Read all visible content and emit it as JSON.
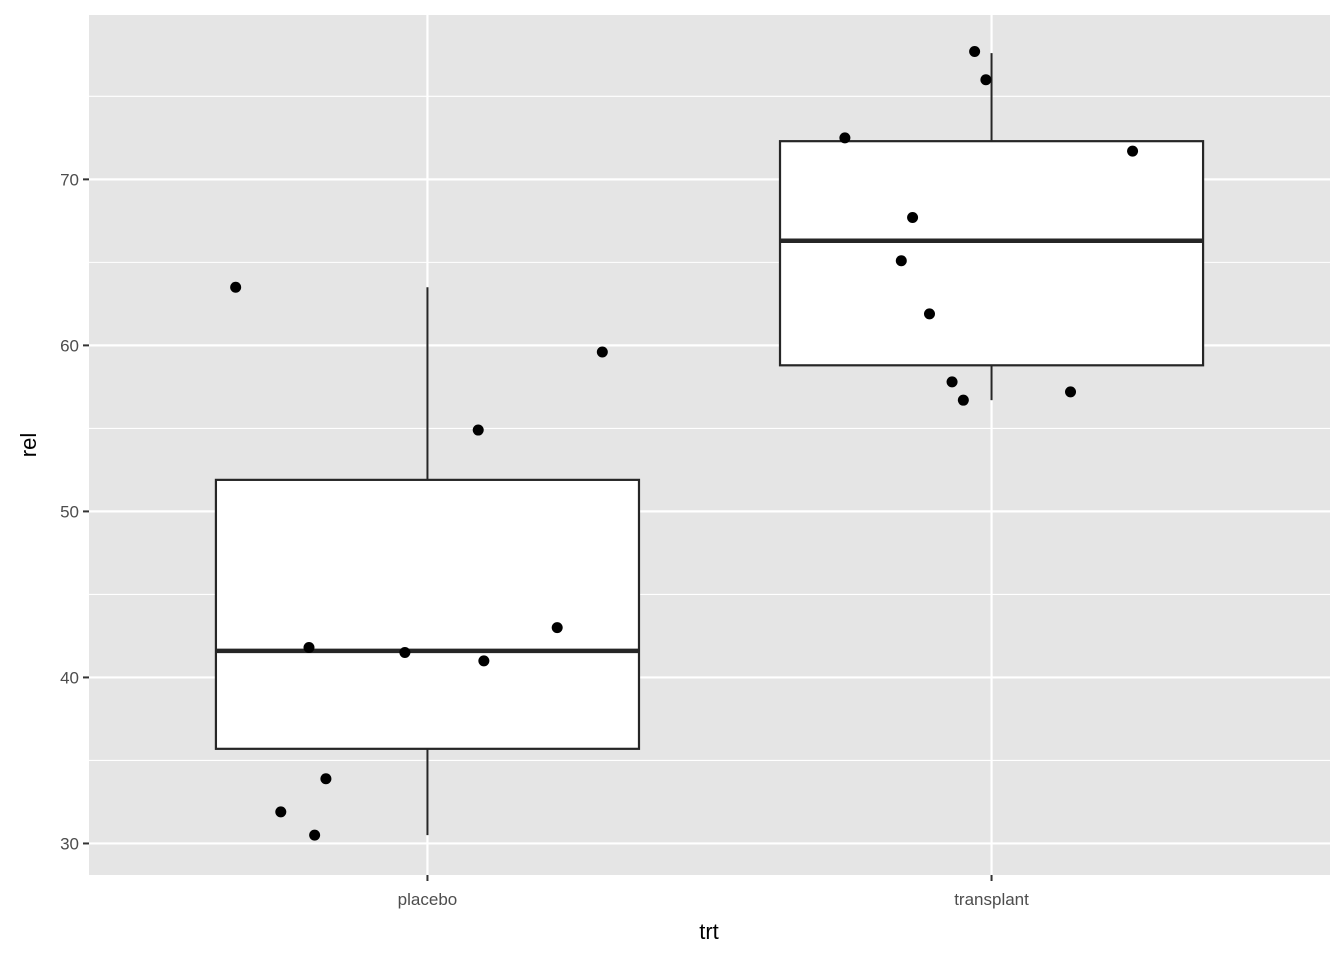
{
  "chart_data": {
    "type": "boxplot",
    "xlabel": "trt",
    "ylabel": "rel",
    "categories": [
      "placebo",
      "transplant"
    ],
    "ylim": [
      28.1,
      79.9
    ],
    "yticks": [
      30,
      40,
      50,
      60,
      70
    ],
    "grid": true,
    "colors": {
      "panel": "#e5e5e5",
      "grid": "#ffffff",
      "box_fill": "#ffffff",
      "box_line": "#262626",
      "points": "#000000",
      "tick_text": "#4d4d4d"
    },
    "boxes": [
      {
        "category": "placebo",
        "lower_whisker": 30.5,
        "q1": 35.7,
        "median": 41.6,
        "q3": 51.9,
        "upper_whisker": 63.5
      },
      {
        "category": "transplant",
        "lower_whisker": 56.7,
        "q1": 58.8,
        "median": 66.3,
        "q3": 72.3,
        "upper_whisker": 77.6
      }
    ],
    "points": [
      {
        "category": "placebo",
        "jitter": -0.34,
        "y": 63.5
      },
      {
        "category": "placebo",
        "jitter": 0.31,
        "y": 59.6
      },
      {
        "category": "placebo",
        "jitter": 0.09,
        "y": 54.9
      },
      {
        "category": "placebo",
        "jitter": 0.23,
        "y": 43.0
      },
      {
        "category": "placebo",
        "jitter": -0.21,
        "y": 41.8
      },
      {
        "category": "placebo",
        "jitter": -0.04,
        "y": 41.5
      },
      {
        "category": "placebo",
        "jitter": 0.1,
        "y": 41.0
      },
      {
        "category": "placebo",
        "jitter": -0.18,
        "y": 33.9
      },
      {
        "category": "placebo",
        "jitter": -0.26,
        "y": 31.9
      },
      {
        "category": "placebo",
        "jitter": -0.2,
        "y": 30.5
      },
      {
        "category": "transplant",
        "jitter": -0.03,
        "y": 77.7
      },
      {
        "category": "transplant",
        "jitter": -0.01,
        "y": 76.0
      },
      {
        "category": "transplant",
        "jitter": -0.26,
        "y": 72.5
      },
      {
        "category": "transplant",
        "jitter": 0.25,
        "y": 71.7
      },
      {
        "category": "transplant",
        "jitter": -0.14,
        "y": 67.7
      },
      {
        "category": "transplant",
        "jitter": -0.16,
        "y": 65.1
      },
      {
        "category": "transplant",
        "jitter": -0.11,
        "y": 61.9
      },
      {
        "category": "transplant",
        "jitter": -0.07,
        "y": 57.8
      },
      {
        "category": "transplant",
        "jitter": 0.14,
        "y": 57.2
      },
      {
        "category": "transplant",
        "jitter": -0.05,
        "y": 56.7
      }
    ]
  }
}
